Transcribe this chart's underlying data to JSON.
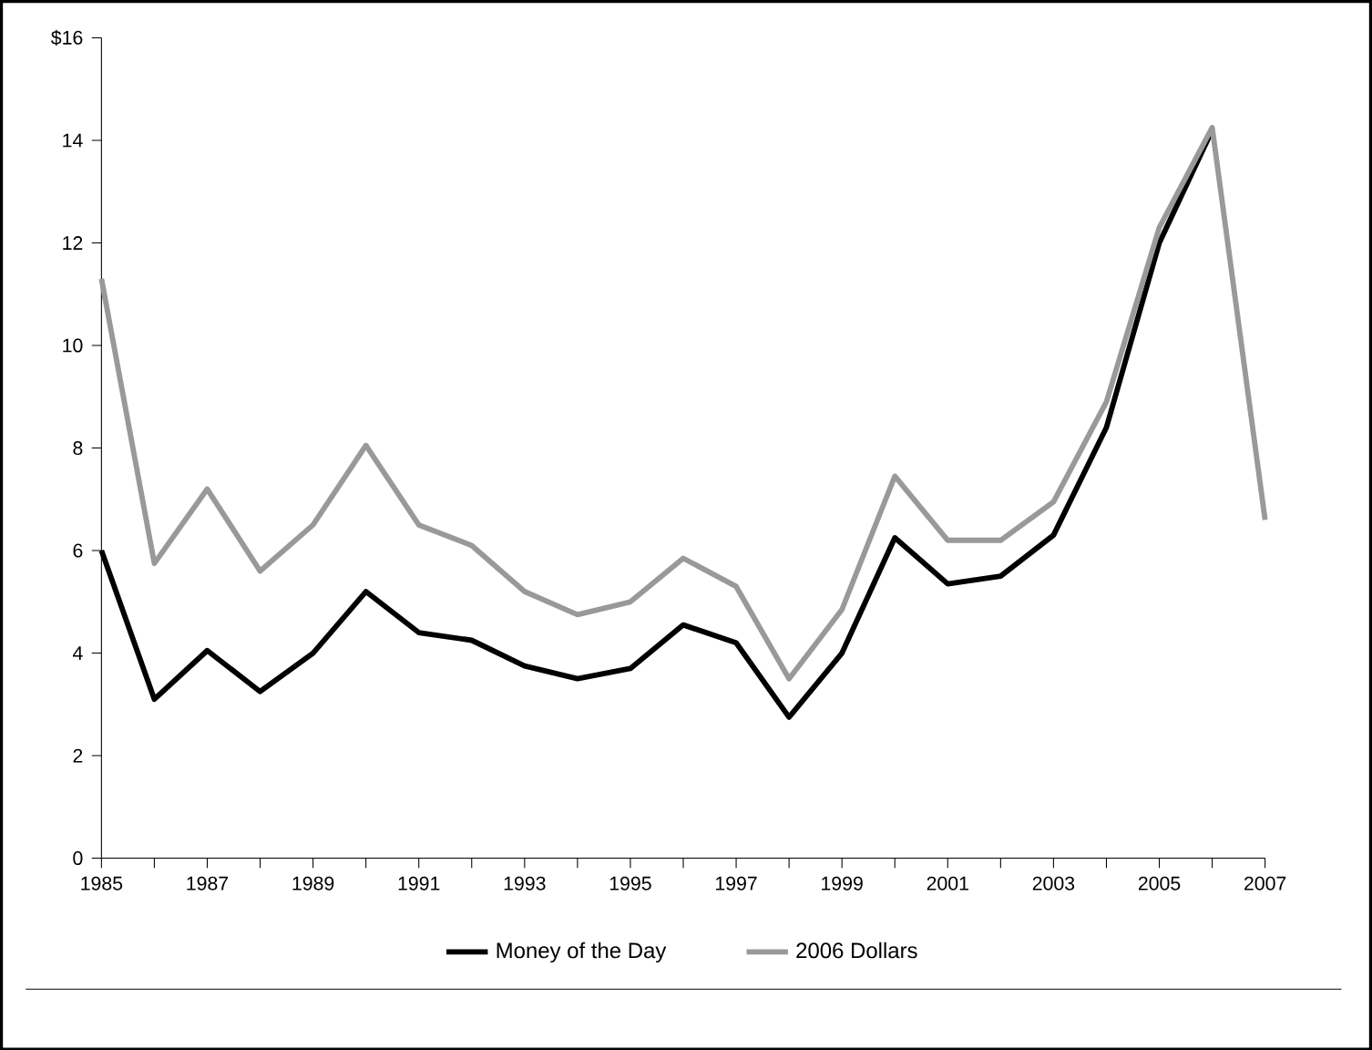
{
  "chart_data": {
    "type": "line",
    "x": [
      1985,
      1986,
      1987,
      1988,
      1989,
      1990,
      1991,
      1992,
      1993,
      1994,
      1995,
      1996,
      1997,
      1998,
      1999,
      2000,
      2001,
      2002,
      2003,
      2004,
      2005,
      2006,
      2007
    ],
    "series": [
      {
        "name": "Money of the Day",
        "color": "#000000",
        "values": [
          6.0,
          3.1,
          4.05,
          3.25,
          4.0,
          5.2,
          4.4,
          4.25,
          3.75,
          3.5,
          3.7,
          4.55,
          4.2,
          2.75,
          4.0,
          6.25,
          5.35,
          5.5,
          6.3,
          8.4,
          12.0,
          14.2,
          null
        ]
      },
      {
        "name": "2006 Dollars",
        "color": "#999999",
        "values": [
          11.3,
          5.75,
          7.2,
          5.6,
          6.5,
          8.05,
          6.5,
          6.1,
          5.2,
          4.75,
          5.0,
          5.85,
          5.3,
          3.5,
          4.85,
          7.45,
          6.2,
          6.2,
          6.95,
          8.9,
          12.3,
          14.25,
          6.6
        ]
      }
    ],
    "xlim": [
      1985,
      2007
    ],
    "xticks": [
      1985,
      {
        "value": 1986,
        "label": null
      },
      1987,
      {
        "value": 1988,
        "label": null
      },
      1989,
      {
        "value": 1990,
        "label": null
      },
      1991,
      {
        "value": 1992,
        "label": null
      },
      1993,
      {
        "value": 1994,
        "label": null
      },
      1995,
      {
        "value": 1996,
        "label": null
      },
      1997,
      {
        "value": 1998,
        "label": null
      },
      1999,
      {
        "value": 2000,
        "label": null
      },
      2001,
      {
        "value": 2002,
        "label": null
      },
      2003,
      {
        "value": 2004,
        "label": null
      },
      2005,
      {
        "value": 2006,
        "label": null
      },
      2007
    ],
    "ylim": [
      0,
      16
    ],
    "yticks": [
      0,
      2,
      4,
      6,
      8,
      10,
      12,
      14,
      {
        "value": 16,
        "label": "$16"
      }
    ],
    "grid": false,
    "legend": "bottom",
    "marker": "none",
    "line_style": "solid"
  }
}
